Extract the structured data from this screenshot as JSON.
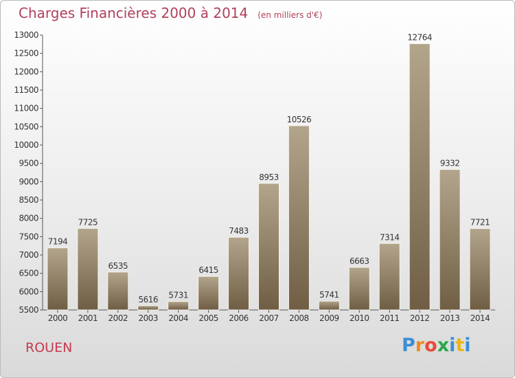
{
  "title": "Charges Financières 2000 à 2014",
  "unit": "(en milliers d'€)",
  "city": "ROUEN",
  "logo": {
    "text": "Proxiti",
    "letters": [
      "P",
      "r",
      "o",
      "x",
      "i",
      "t",
      "i"
    ],
    "colors": [
      "#3a8fd4",
      "#f08a1c",
      "#e84a3a",
      "#2aa84a",
      "#3a8fd4",
      "#e8b61a",
      "#3a8fd4"
    ]
  },
  "colors": {
    "bar_top": "#b3a58c",
    "bar_bottom": "#6f5e44",
    "title": "#b0405a",
    "city": "#c6394f"
  },
  "chart_data": {
    "type": "bar",
    "categories": [
      "2000",
      "2001",
      "2002",
      "2003",
      "2004",
      "2005",
      "2006",
      "2007",
      "2008",
      "2009",
      "2010",
      "2011",
      "2012",
      "2013",
      "2014"
    ],
    "values": [
      7194,
      7725,
      6535,
      5616,
      5731,
      6415,
      7483,
      8953,
      10526,
      5741,
      6663,
      7314,
      12764,
      9332,
      7721
    ],
    "yticks": [
      5500,
      6000,
      6500,
      7000,
      7500,
      8000,
      8500,
      9000,
      9500,
      10000,
      10500,
      11000,
      11500,
      12000,
      12500,
      13000
    ],
    "ylim": [
      5500,
      13000
    ],
    "title": "Charges Financières 2000 à 2014",
    "xlabel": "",
    "ylabel": "",
    "grid": false
  }
}
